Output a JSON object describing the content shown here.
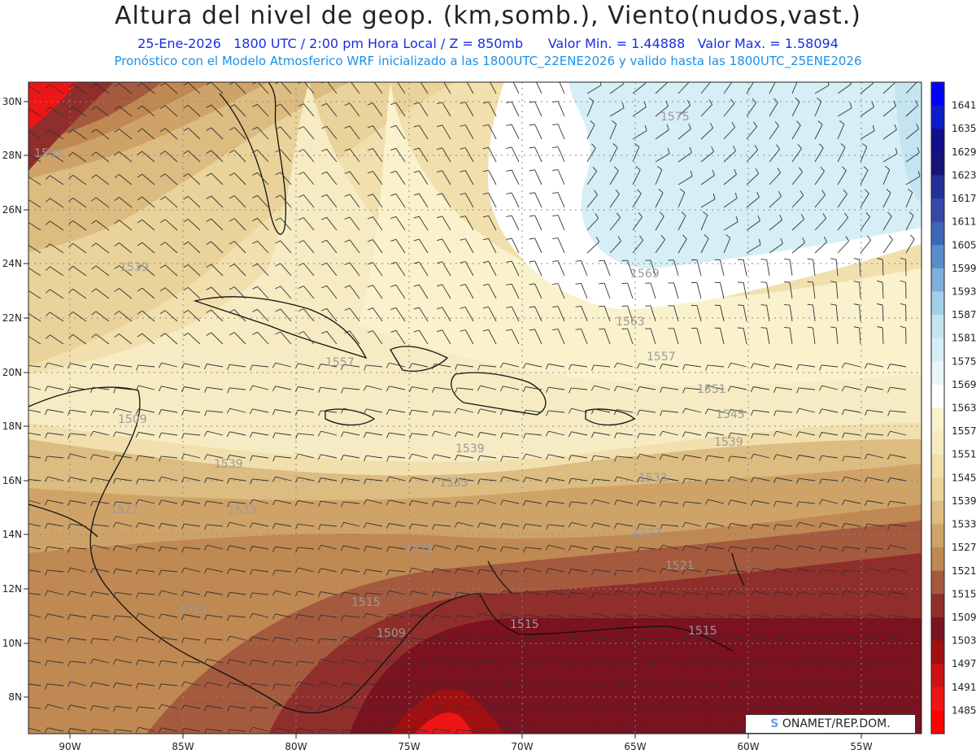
{
  "title": "Altura del nivel de geop. (km,somb.), Viento(nudos,vast.)",
  "subtitle_line1": {
    "date": "25-Ene-2026",
    "time": "1800 UTC / 2:00 pm Hora Local / Z = 850mb",
    "min": "Valor Min. = 1.44888",
    "max": "Valor Max. = 1.58094"
  },
  "subtitle_line2": "Pronóstico con el Modelo Atmosferico WRF inicializado a las 1800UTC_22ENE2026 y valido hasta las  1800UTC_25ENE2026",
  "lat_labels": [
    "30N",
    "28N",
    "26N",
    "24N",
    "22N",
    "20N",
    "18N",
    "16N",
    "14N",
    "12N",
    "10N",
    "8N"
  ],
  "lon_labels": [
    "90W",
    "85W",
    "80W",
    "75W",
    "70W",
    "65W",
    "60W",
    "55W"
  ],
  "colorbar": {
    "levels": [
      "1641",
      "1635",
      "1629",
      "1623",
      "1617",
      "1611",
      "1605",
      "1599",
      "1593",
      "1587",
      "1581",
      "1575",
      "1569",
      "1563",
      "1557",
      "1551",
      "1545",
      "1539",
      "1533",
      "1527",
      "1521",
      "1515",
      "1509",
      "1503",
      "1497",
      "1491",
      "1485"
    ],
    "colors": [
      "#0000ff",
      "#0c1cc8",
      "#10108a",
      "#16127a",
      "#25309a",
      "#3548a8",
      "#3e66b8",
      "#5a8ccc",
      "#7eb0da",
      "#a4cfe8",
      "#c4e4f0",
      "#d6eef6",
      "#e8f6fa",
      "#ffffff",
      "#f9f2cc",
      "#f6ebc2",
      "#f1e0ad",
      "#e9d39a",
      "#dcbc80",
      "#cfa368",
      "#c08852",
      "#a55a3e",
      "#8f2e2b",
      "#7a1220",
      "#a01010",
      "#cc1212",
      "#ee1515",
      "#ff0000"
    ]
  },
  "contour_labels": [
    {
      "text": "1503"
    },
    {
      "text": "1575"
    },
    {
      "text": "1539"
    },
    {
      "text": "1569"
    },
    {
      "text": "1563"
    },
    {
      "text": "1557"
    },
    {
      "text": "1557"
    },
    {
      "text": "1551"
    },
    {
      "text": "1545"
    },
    {
      "text": "1539"
    },
    {
      "text": "1539"
    },
    {
      "text": "1539"
    },
    {
      "text": "1533"
    },
    {
      "text": "1533"
    },
    {
      "text": "1533"
    },
    {
      "text": "1527"
    },
    {
      "text": "1527"
    },
    {
      "text": "1521"
    },
    {
      "text": "1521"
    },
    {
      "text": "1515"
    },
    {
      "text": "1515"
    },
    {
      "text": "1515"
    },
    {
      "text": "1509"
    },
    {
      "text": "1521"
    },
    {
      "text": "1509"
    }
  ],
  "credit": "ONAMET/REP.DOM."
}
